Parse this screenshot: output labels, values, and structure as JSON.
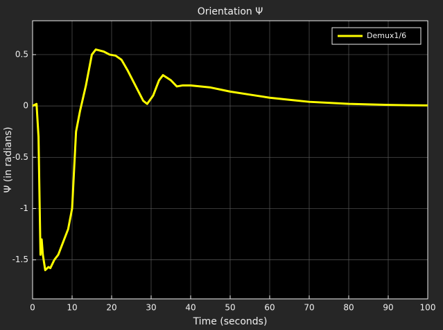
{
  "chart_data": {
    "type": "line",
    "title": "Orientation Ψ",
    "x_label": "Time (seconds)",
    "y_label": "Ψ  (in radians)",
    "xlim": [
      0,
      100
    ],
    "ylim": [
      -1.88,
      0.83
    ],
    "xticks": [
      0,
      10,
      20,
      30,
      40,
      50,
      60,
      70,
      80,
      90,
      100
    ],
    "yticks": [
      -1.5,
      -1,
      -0.5,
      0,
      0.5
    ],
    "grid": true,
    "legend": "northeast",
    "series": [
      {
        "name": "Demux1/6",
        "color": "#ffff00",
        "x": [
          0,
          1,
          1.5,
          2,
          2.3,
          2.6,
          3.2,
          4,
          4.5,
          5.5,
          6.5,
          8,
          9,
          10,
          11,
          12,
          13.5,
          15,
          16,
          18,
          19.5,
          21,
          22.5,
          24,
          26,
          28,
          29,
          30.5,
          32,
          33,
          35,
          36.5,
          38,
          40,
          45,
          50,
          55,
          60,
          65,
          70,
          75,
          80,
          85,
          90,
          95,
          100
        ],
        "values": [
          0,
          0.02,
          -0.3,
          -1.45,
          -1.3,
          -1.45,
          -1.6,
          -1.57,
          -1.58,
          -1.5,
          -1.45,
          -1.3,
          -1.2,
          -1.0,
          -0.25,
          -0.05,
          0.2,
          0.5,
          0.55,
          0.53,
          0.5,
          0.49,
          0.45,
          0.35,
          0.2,
          0.05,
          0.02,
          0.1,
          0.25,
          0.3,
          0.25,
          0.19,
          0.2,
          0.2,
          0.18,
          0.14,
          0.11,
          0.08,
          0.06,
          0.04,
          0.03,
          0.02,
          0.015,
          0.01,
          0.007,
          0.005
        ]
      }
    ]
  }
}
